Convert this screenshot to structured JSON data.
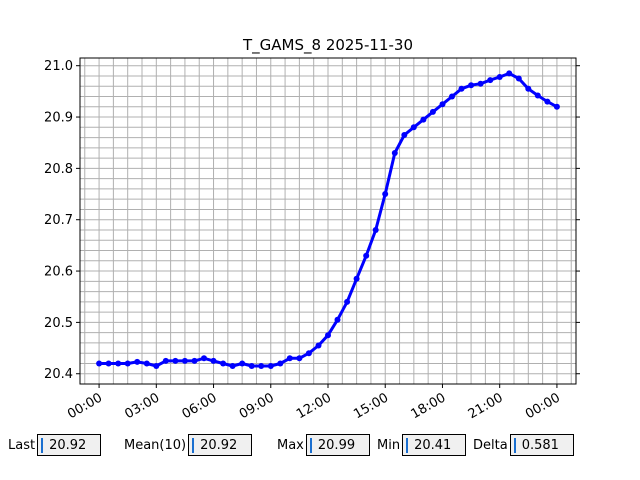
{
  "chart_data": {
    "type": "line",
    "title": "T_GAMS_8 2025-11-30",
    "xlabel": "",
    "ylabel": "",
    "x_ticks": [
      "00:00",
      "03:00",
      "06:00",
      "09:00",
      "12:00",
      "15:00",
      "18:00",
      "21:00",
      "00:00"
    ],
    "x_range_hours": [
      -1.0,
      25.0
    ],
    "ylim": [
      20.38,
      21.015
    ],
    "y_ticks": [
      "20.4",
      "20.5",
      "20.6",
      "20.7",
      "20.8",
      "20.9",
      "21.0"
    ],
    "grid": true,
    "series": [
      {
        "color": "#0000ff",
        "marker": "circle",
        "x_hours": [
          0,
          0.5,
          1,
          1.5,
          2,
          2.5,
          3,
          3.5,
          4,
          4.5,
          5,
          5.5,
          6,
          6.5,
          7,
          7.5,
          8,
          8.5,
          9,
          9.5,
          10,
          10.5,
          11,
          11.5,
          12,
          12.5,
          13,
          13.5,
          14,
          14.5,
          15,
          15.5,
          16,
          16.5,
          17,
          17.5,
          18,
          18.5,
          19,
          19.5,
          20,
          20.5,
          21,
          21.5,
          22,
          22.5,
          23,
          23.5,
          24
        ],
        "y": [
          20.42,
          20.42,
          20.42,
          20.42,
          20.423,
          20.42,
          20.415,
          20.425,
          20.425,
          20.425,
          20.425,
          20.43,
          20.425,
          20.42,
          20.415,
          20.42,
          20.415,
          20.415,
          20.415,
          20.42,
          20.43,
          20.43,
          20.44,
          20.455,
          20.475,
          20.505,
          20.54,
          20.585,
          20.63,
          20.68,
          20.75,
          20.83,
          20.865,
          20.88,
          20.895,
          20.91,
          20.925,
          20.94,
          20.955,
          20.962,
          20.965,
          20.972,
          20.978,
          20.985,
          20.975,
          20.955,
          20.942,
          20.93,
          20.92
        ]
      }
    ]
  },
  "stats": {
    "last_label": "Last",
    "last_value": "20.92",
    "mean_label": "Mean(10)",
    "mean_value": "20.92",
    "max_label": "Max",
    "max_value": "20.99",
    "min_label": "Min",
    "min_value": "20.41",
    "delta_label": "Delta",
    "delta_value": "0.581"
  }
}
